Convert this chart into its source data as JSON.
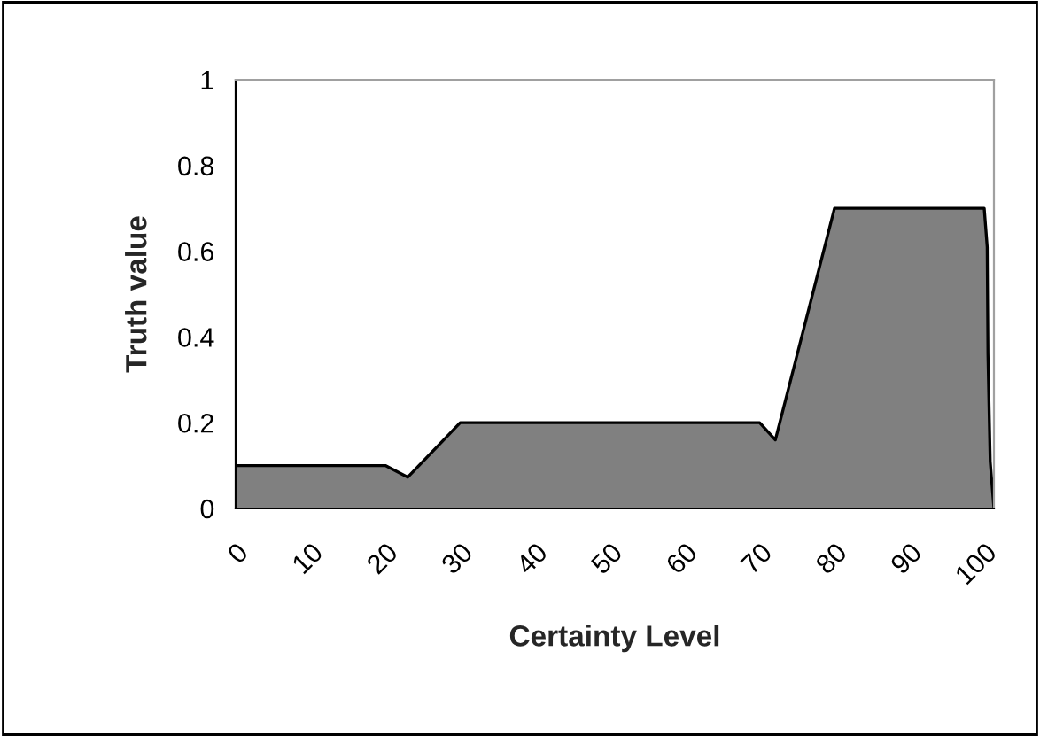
{
  "chart_data": {
    "type": "area",
    "xlabel": "Certainty Level",
    "ylabel": "Truth value",
    "x": [
      0,
      20,
      23,
      30,
      70,
      72.1,
      80,
      100,
      100.4,
      100.5,
      100.8,
      101.3
    ],
    "series": [
      {
        "color": "#808080",
        "values": [
          0.1,
          0.1,
          0.073,
          0.2,
          0.2,
          0.16,
          0.7,
          0.7,
          0.61,
          0.36,
          0.11,
          0
        ]
      }
    ],
    "xlim": [
      0,
      101.3
    ],
    "xticks": [
      0,
      10,
      20,
      30,
      40,
      50,
      60,
      70,
      80,
      90,
      100
    ],
    "ylim": [
      0,
      1
    ],
    "yticks": [
      0,
      0.2,
      0.4,
      0.6,
      0.8,
      1
    ],
    "grid": false,
    "legend": false
  }
}
